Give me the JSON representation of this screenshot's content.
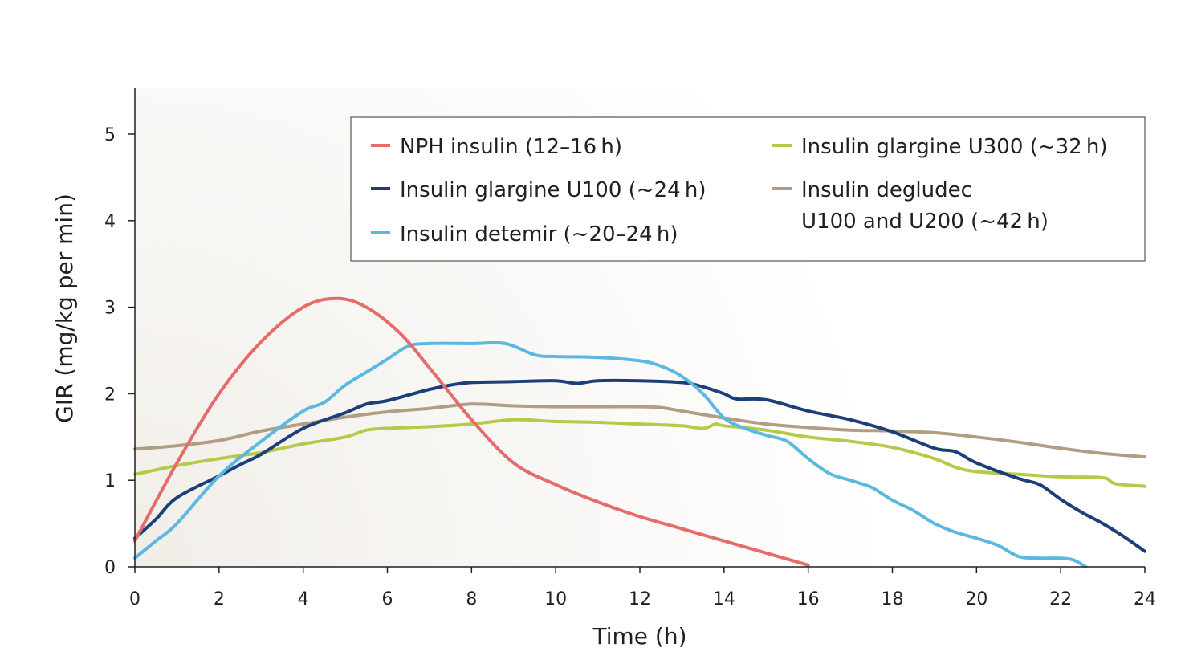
{
  "chart_data": {
    "type": "line",
    "title": "",
    "xlabel": "Time (h)",
    "ylabel": "GIR (mg/kg per min)",
    "xlim": [
      0,
      24
    ],
    "ylim": [
      0,
      5.5
    ],
    "xticks": [
      0,
      2,
      4,
      6,
      8,
      10,
      12,
      14,
      16,
      18,
      20,
      22,
      24
    ],
    "yticks": [
      0,
      1,
      2,
      3,
      4,
      5
    ],
    "grid": false,
    "legend_position": "top-right",
    "series": [
      {
        "name": "NPH insulin (12–16 h)",
        "legend_lines": [
          "NPH insulin (12–16 h)"
        ],
        "color": "#e46c6b",
        "points": [
          [
            0,
            0.3
          ],
          [
            1,
            1.2
          ],
          [
            2,
            2.0
          ],
          [
            3,
            2.6
          ],
          [
            4,
            3.0
          ],
          [
            4.8,
            3.1
          ],
          [
            5.5,
            3.0
          ],
          [
            6.3,
            2.7
          ],
          [
            7,
            2.3
          ],
          [
            8,
            1.7
          ],
          [
            9,
            1.2
          ],
          [
            10,
            0.95
          ],
          [
            11,
            0.75
          ],
          [
            12,
            0.58
          ],
          [
            13,
            0.44
          ],
          [
            14,
            0.3
          ],
          [
            15,
            0.16
          ],
          [
            16,
            0.02
          ]
        ]
      },
      {
        "name": "Insulin glargine U100 (~24 h)",
        "legend_lines": [
          "Insulin glargine U100 (~24 h)"
        ],
        "color": "#1c3f7a",
        "points": [
          [
            0,
            0.33
          ],
          [
            0.5,
            0.55
          ],
          [
            1,
            0.8
          ],
          [
            2,
            1.05
          ],
          [
            2.5,
            1.18
          ],
          [
            3,
            1.3
          ],
          [
            4,
            1.6
          ],
          [
            5,
            1.78
          ],
          [
            5.5,
            1.88
          ],
          [
            6,
            1.92
          ],
          [
            7,
            2.05
          ],
          [
            7.5,
            2.1
          ],
          [
            8,
            2.13
          ],
          [
            9,
            2.14
          ],
          [
            10,
            2.15
          ],
          [
            10.5,
            2.12
          ],
          [
            11,
            2.15
          ],
          [
            12,
            2.15
          ],
          [
            13,
            2.13
          ],
          [
            13.5,
            2.08
          ],
          [
            14,
            2.0
          ],
          [
            14.3,
            1.94
          ],
          [
            15,
            1.93
          ],
          [
            16,
            1.8
          ],
          [
            17,
            1.7
          ],
          [
            18,
            1.56
          ],
          [
            19,
            1.37
          ],
          [
            19.5,
            1.33
          ],
          [
            20,
            1.2
          ],
          [
            21,
            1.02
          ],
          [
            21.5,
            0.95
          ],
          [
            22,
            0.78
          ],
          [
            22.5,
            0.63
          ],
          [
            23,
            0.5
          ],
          [
            23.5,
            0.35
          ],
          [
            24,
            0.18
          ]
        ]
      },
      {
        "name": "Insulin detemir (~20–24 h)",
        "legend_lines": [
          "Insulin detemir (~20–24 h)"
        ],
        "color": "#5bb8e0",
        "points": [
          [
            0,
            0.1
          ],
          [
            0.5,
            0.3
          ],
          [
            1,
            0.5
          ],
          [
            2,
            1.05
          ],
          [
            3,
            1.45
          ],
          [
            4,
            1.8
          ],
          [
            4.5,
            1.9
          ],
          [
            5,
            2.1
          ],
          [
            5.5,
            2.25
          ],
          [
            6,
            2.4
          ],
          [
            6.5,
            2.55
          ],
          [
            7,
            2.58
          ],
          [
            8,
            2.58
          ],
          [
            8.8,
            2.58
          ],
          [
            9.5,
            2.45
          ],
          [
            10,
            2.43
          ],
          [
            11,
            2.42
          ],
          [
            12,
            2.38
          ],
          [
            12.5,
            2.32
          ],
          [
            13,
            2.2
          ],
          [
            13.5,
            2.0
          ],
          [
            14,
            1.72
          ],
          [
            14.5,
            1.6
          ],
          [
            15,
            1.52
          ],
          [
            15.5,
            1.45
          ],
          [
            16,
            1.25
          ],
          [
            16.5,
            1.08
          ],
          [
            17,
            1.0
          ],
          [
            17.5,
            0.92
          ],
          [
            18,
            0.77
          ],
          [
            18.5,
            0.65
          ],
          [
            19,
            0.5
          ],
          [
            19.5,
            0.4
          ],
          [
            20,
            0.33
          ],
          [
            20.5,
            0.25
          ],
          [
            21,
            0.12
          ],
          [
            21.5,
            0.1
          ],
          [
            22,
            0.1
          ],
          [
            22.3,
            0.08
          ],
          [
            22.6,
            0.0
          ]
        ]
      },
      {
        "name": "Insulin glargine U300 (~32 h)",
        "legend_lines": [
          "Insulin glargine U300 (~32 h)"
        ],
        "color": "#b5c94a",
        "points": [
          [
            0,
            1.07
          ],
          [
            0.5,
            1.12
          ],
          [
            1,
            1.17
          ],
          [
            2,
            1.25
          ],
          [
            3,
            1.32
          ],
          [
            4,
            1.42
          ],
          [
            5,
            1.5
          ],
          [
            5.5,
            1.58
          ],
          [
            6,
            1.6
          ],
          [
            7,
            1.62
          ],
          [
            8,
            1.65
          ],
          [
            9,
            1.7
          ],
          [
            10,
            1.68
          ],
          [
            11,
            1.67
          ],
          [
            12,
            1.65
          ],
          [
            13,
            1.63
          ],
          [
            13.5,
            1.6
          ],
          [
            13.8,
            1.65
          ],
          [
            14,
            1.63
          ],
          [
            15,
            1.58
          ],
          [
            16,
            1.5
          ],
          [
            17,
            1.45
          ],
          [
            18,
            1.38
          ],
          [
            19,
            1.25
          ],
          [
            19.5,
            1.15
          ],
          [
            20,
            1.1
          ],
          [
            21,
            1.07
          ],
          [
            22,
            1.04
          ],
          [
            23,
            1.03
          ],
          [
            23.3,
            0.96
          ],
          [
            24,
            0.93
          ]
        ]
      },
      {
        "name": "Insulin degludec U100 and U200 (~42 h)",
        "legend_lines": [
          "Insulin degludec",
          "U100 and U200 (~42 h)"
        ],
        "color": "#b09d84",
        "points": [
          [
            0,
            1.36
          ],
          [
            1,
            1.4
          ],
          [
            2,
            1.46
          ],
          [
            3,
            1.57
          ],
          [
            4,
            1.65
          ],
          [
            5,
            1.73
          ],
          [
            6,
            1.79
          ],
          [
            7,
            1.83
          ],
          [
            8,
            1.88
          ],
          [
            9,
            1.86
          ],
          [
            10,
            1.85
          ],
          [
            11,
            1.85
          ],
          [
            12,
            1.85
          ],
          [
            12.5,
            1.84
          ],
          [
            13,
            1.8
          ],
          [
            14,
            1.72
          ],
          [
            15,
            1.65
          ],
          [
            16,
            1.61
          ],
          [
            17,
            1.58
          ],
          [
            18,
            1.57
          ],
          [
            19,
            1.55
          ],
          [
            20,
            1.5
          ],
          [
            21,
            1.44
          ],
          [
            22,
            1.37
          ],
          [
            23,
            1.31
          ],
          [
            24,
            1.27
          ]
        ]
      }
    ]
  }
}
